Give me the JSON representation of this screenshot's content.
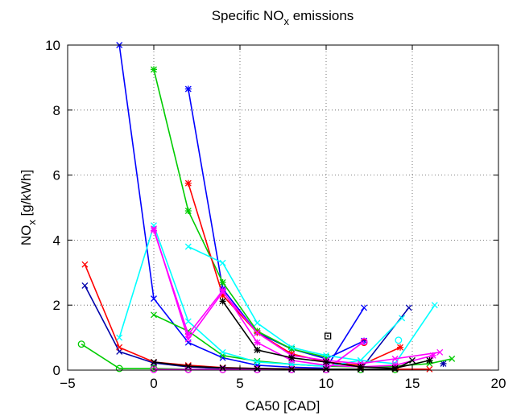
{
  "chart_data": {
    "type": "line",
    "title": {
      "main": "Specific NO",
      "sub": "x",
      "rest": " emissions"
    },
    "xlabel": "CA50 [CAD]",
    "ylabel": {
      "main": "NO",
      "sub": "x",
      "rest": " [g/kWh]"
    },
    "xlim": [
      -5,
      20
    ],
    "ylim": [
      0,
      10
    ],
    "xticks": [
      -5,
      0,
      5,
      10,
      15,
      20
    ],
    "xtick_labels": [
      "−5",
      "0",
      "5",
      "10",
      "15",
      "20"
    ],
    "yticks": [
      0,
      2,
      4,
      6,
      8,
      10
    ],
    "ytick_labels": [
      "0",
      "2",
      "4",
      "6",
      "8",
      "10"
    ],
    "grid": true,
    "series": [
      {
        "color": "#0000ff",
        "marker": "x",
        "x": [
          -2,
          0,
          2,
          4,
          6,
          8,
          10,
          12.2
        ],
        "y": [
          10,
          2.2,
          0.85,
          0.38,
          0.15,
          0.09,
          0.06,
          1.92
        ]
      },
      {
        "color": "#0000ff",
        "marker": "*",
        "x": [
          2,
          4,
          6,
          8,
          10,
          12.2
        ],
        "y": [
          8.65,
          2.5,
          1.15,
          0.65,
          0.35,
          0.9
        ]
      },
      {
        "color": "#0000aa",
        "marker": "x",
        "x": [
          -4,
          -2,
          0,
          2,
          4,
          6,
          8,
          10,
          12,
          14.8
        ],
        "y": [
          2.6,
          0.57,
          0.22,
          0.1,
          0.05,
          0.03,
          0.02,
          0.02,
          0.02,
          1.92
        ]
      },
      {
        "color": "#0000aa",
        "marker": "*",
        "x": [
          16.8
        ],
        "y": [
          0.2
        ]
      },
      {
        "color": "#00cc00",
        "marker": "*",
        "x": [
          0,
          2,
          4,
          6,
          8,
          10
        ],
        "y": [
          9.25,
          4.9,
          2.7,
          1.2,
          0.65,
          0.4
        ]
      },
      {
        "color": "#00cc00",
        "marker": "x",
        "x": [
          0,
          2,
          4,
          6,
          8,
          10,
          12,
          14,
          16,
          17.3
        ],
        "y": [
          1.7,
          1.2,
          0.45,
          0.28,
          0.18,
          0.12,
          0.1,
          0.12,
          0.2,
          0.35
        ]
      },
      {
        "color": "#00cc00",
        "marker": "o",
        "x": [
          -4.2,
          -2,
          0,
          2,
          4,
          6,
          8,
          10,
          12,
          14
        ],
        "y": [
          0.8,
          0.05,
          0.05,
          0.03,
          0.02,
          0.02,
          0.02,
          0.02,
          0.02,
          0.02
        ]
      },
      {
        "color": "#ff0000",
        "marker": "*",
        "x": [
          2,
          4,
          6,
          8,
          10,
          12,
          14.3
        ],
        "y": [
          5.75,
          2.3,
          1.15,
          0.5,
          0.25,
          0.15,
          0.7
        ]
      },
      {
        "color": "#ff0000",
        "marker": "x",
        "x": [
          -4,
          -2,
          0,
          2,
          4,
          6,
          8,
          10,
          12,
          14,
          16
        ],
        "y": [
          3.25,
          0.7,
          0.25,
          0.15,
          0.08,
          0.05,
          0.04,
          0.03,
          0.03,
          0.03,
          0.03
        ]
      },
      {
        "color": "#ff0000",
        "marker": "o",
        "x": [
          12.2
        ],
        "y": [
          0.85
        ]
      },
      {
        "color": "#00ffff",
        "marker": "x",
        "x": [
          -2,
          0,
          2,
          4,
          6,
          8,
          10,
          12,
          14,
          16.3
        ],
        "y": [
          1,
          4.45,
          1.5,
          0.55,
          0.25,
          0.18,
          0.12,
          0.3,
          0.2,
          2
        ]
      },
      {
        "color": "#00ffff",
        "marker": "x",
        "x": [
          2,
          4,
          6,
          8,
          10,
          12,
          14.4
        ],
        "y": [
          3.8,
          3.3,
          1.45,
          0.7,
          0.45,
          0.3,
          1.6
        ]
      },
      {
        "color": "#00ffff",
        "marker": "o",
        "x": [
          14.2
        ],
        "y": [
          0.92
        ]
      },
      {
        "color": "#ff00ff",
        "marker": "*",
        "x": [
          0,
          2,
          4,
          6,
          8,
          10,
          12,
          14,
          16.2
        ],
        "y": [
          4.3,
          1.1,
          2.45,
          0.85,
          0.3,
          0.15,
          0.1,
          0.15,
          0.45
        ]
      },
      {
        "color": "#ff00ff",
        "marker": "x",
        "x": [
          0,
          2,
          4,
          6,
          8,
          10,
          12,
          14,
          16.6
        ],
        "y": [
          4.35,
          0.95,
          2.4,
          1.15,
          0.45,
          0.3,
          0.2,
          0.35,
          0.55
        ]
      },
      {
        "color": "#ff00ff",
        "marker": "o",
        "x": [
          0,
          2,
          4,
          6,
          8,
          10,
          12.2
        ],
        "y": [
          0.02,
          0.02,
          0.02,
          0.02,
          0.02,
          0.02,
          0.88
        ]
      },
      {
        "color": "#000000",
        "marker": "*",
        "x": [
          4,
          6,
          8,
          10,
          12,
          14,
          16
        ],
        "y": [
          2.12,
          0.62,
          0.38,
          0.25,
          0.1,
          0.06,
          0.3
        ]
      },
      {
        "color": "#000000",
        "marker": "x",
        "x": [
          0,
          2,
          4,
          6,
          8,
          10,
          12,
          14,
          15
        ],
        "y": [
          0.25,
          0.12,
          0.07,
          0.05,
          0.03,
          0.03,
          0.03,
          0.03,
          0.3
        ]
      },
      {
        "color": "#000000",
        "marker": "square",
        "x": [
          10.1
        ],
        "y": [
          1.05
        ]
      }
    ]
  }
}
